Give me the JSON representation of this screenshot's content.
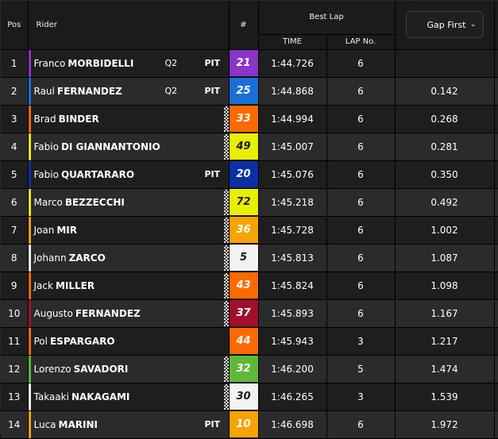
{
  "header": {
    "pos": "Pos",
    "rider": "Rider",
    "number": "#",
    "best_lap": "Best Lap",
    "time": "TIME",
    "lap_no": "LAP No.",
    "gap_select": "Gap First"
  },
  "rows": [
    {
      "pos": "1",
      "first": "Franco",
      "last": "MORBIDELLI",
      "q2": "Q2",
      "pit": "PIT",
      "checker": false,
      "num": "21",
      "num_bg": "#8a35c8",
      "num_fg": "#ffffff",
      "stripe": "#8a35c8",
      "time": "1:44.726",
      "lap": "6",
      "gap": ""
    },
    {
      "pos": "2",
      "first": "Raul",
      "last": "FERNANDEZ",
      "q2": "Q2",
      "pit": "PIT",
      "checker": false,
      "num": "25",
      "num_bg": "#1a6fd6",
      "num_fg": "#ffffff",
      "stripe": "#1a6fd6",
      "time": "1:44.868",
      "lap": "6",
      "gap": "0.142"
    },
    {
      "pos": "3",
      "first": "Brad",
      "last": "BINDER",
      "q2": "",
      "pit": "",
      "checker": true,
      "num": "33",
      "num_bg": "#ff6a00",
      "num_fg": "#ffffff",
      "stripe": "#ff6a00",
      "time": "1:44.994",
      "lap": "6",
      "gap": "0.268"
    },
    {
      "pos": "4",
      "first": "Fabio",
      "last": "DI GIANNANTONIO",
      "q2": "",
      "pit": "",
      "checker": true,
      "num": "49",
      "num_bg": "#e8f000",
      "num_fg": "#1a1a1a",
      "stripe": "#e8f000",
      "time": "1:45.007",
      "lap": "6",
      "gap": "0.281"
    },
    {
      "pos": "5",
      "first": "Fabio",
      "last": "QUARTARARO",
      "q2": "",
      "pit": "PIT",
      "checker": false,
      "num": "20",
      "num_bg": "#0d2fa6",
      "num_fg": "#ffffff",
      "stripe": "#0d2fa6",
      "time": "1:45.076",
      "lap": "6",
      "gap": "0.350"
    },
    {
      "pos": "6",
      "first": "Marco",
      "last": "BEZZECCHI",
      "q2": "",
      "pit": "",
      "checker": true,
      "num": "72",
      "num_bg": "#e8f000",
      "num_fg": "#1a1a1a",
      "stripe": "#e8f000",
      "time": "1:45.218",
      "lap": "6",
      "gap": "0.492"
    },
    {
      "pos": "7",
      "first": "Joan",
      "last": "MIR",
      "q2": "",
      "pit": "",
      "checker": true,
      "num": "36",
      "num_bg": "#f5a300",
      "num_fg": "#ffffff",
      "stripe": "#f5a300",
      "time": "1:45.728",
      "lap": "6",
      "gap": "1.002"
    },
    {
      "pos": "8",
      "first": "Johann",
      "last": "ZARCO",
      "q2": "",
      "pit": "",
      "checker": true,
      "num": "5",
      "num_bg": "#f2f2f2",
      "num_fg": "#1a1a1a",
      "stripe": "#f2f2f2",
      "time": "1:45.813",
      "lap": "6",
      "gap": "1.087"
    },
    {
      "pos": "9",
      "first": "Jack",
      "last": "MILLER",
      "q2": "",
      "pit": "",
      "checker": true,
      "num": "43",
      "num_bg": "#ff6a00",
      "num_fg": "#ffffff",
      "stripe": "#ff6a00",
      "time": "1:45.824",
      "lap": "6",
      "gap": "1.098"
    },
    {
      "pos": "10",
      "first": "Augusto",
      "last": "FERNANDEZ",
      "q2": "",
      "pit": "",
      "checker": true,
      "num": "37",
      "num_bg": "#a0102a",
      "num_fg": "#ffffff",
      "stripe": "#a0102a",
      "time": "1:45.893",
      "lap": "6",
      "gap": "1.167"
    },
    {
      "pos": "11",
      "first": "Pol",
      "last": "ESPARGARO",
      "q2": "",
      "pit": "",
      "checker": false,
      "num": "44",
      "num_bg": "#ff6a00",
      "num_fg": "#ffffff",
      "stripe": "#ff6a00",
      "time": "1:45.943",
      "lap": "3",
      "gap": "1.217"
    },
    {
      "pos": "12",
      "first": "Lorenzo",
      "last": "SAVADORI",
      "q2": "",
      "pit": "",
      "checker": true,
      "num": "32",
      "num_bg": "#5fb83a",
      "num_fg": "#ffffff",
      "stripe": "#5fb83a",
      "time": "1:46.200",
      "lap": "5",
      "gap": "1.474"
    },
    {
      "pos": "13",
      "first": "Takaaki",
      "last": "NAKAGAMI",
      "q2": "",
      "pit": "",
      "checker": true,
      "num": "30",
      "num_bg": "#f2f2f2",
      "num_fg": "#1a1a1a",
      "stripe": "#f2f2f2",
      "time": "1:46.265",
      "lap": "3",
      "gap": "1.539"
    },
    {
      "pos": "14",
      "first": "Luca",
      "last": "MARINI",
      "q2": "",
      "pit": "PIT",
      "checker": false,
      "num": "10",
      "num_bg": "#f5a300",
      "num_fg": "#ffffff",
      "stripe": "#f5a300",
      "time": "1:46.698",
      "lap": "6",
      "gap": "1.972"
    }
  ]
}
